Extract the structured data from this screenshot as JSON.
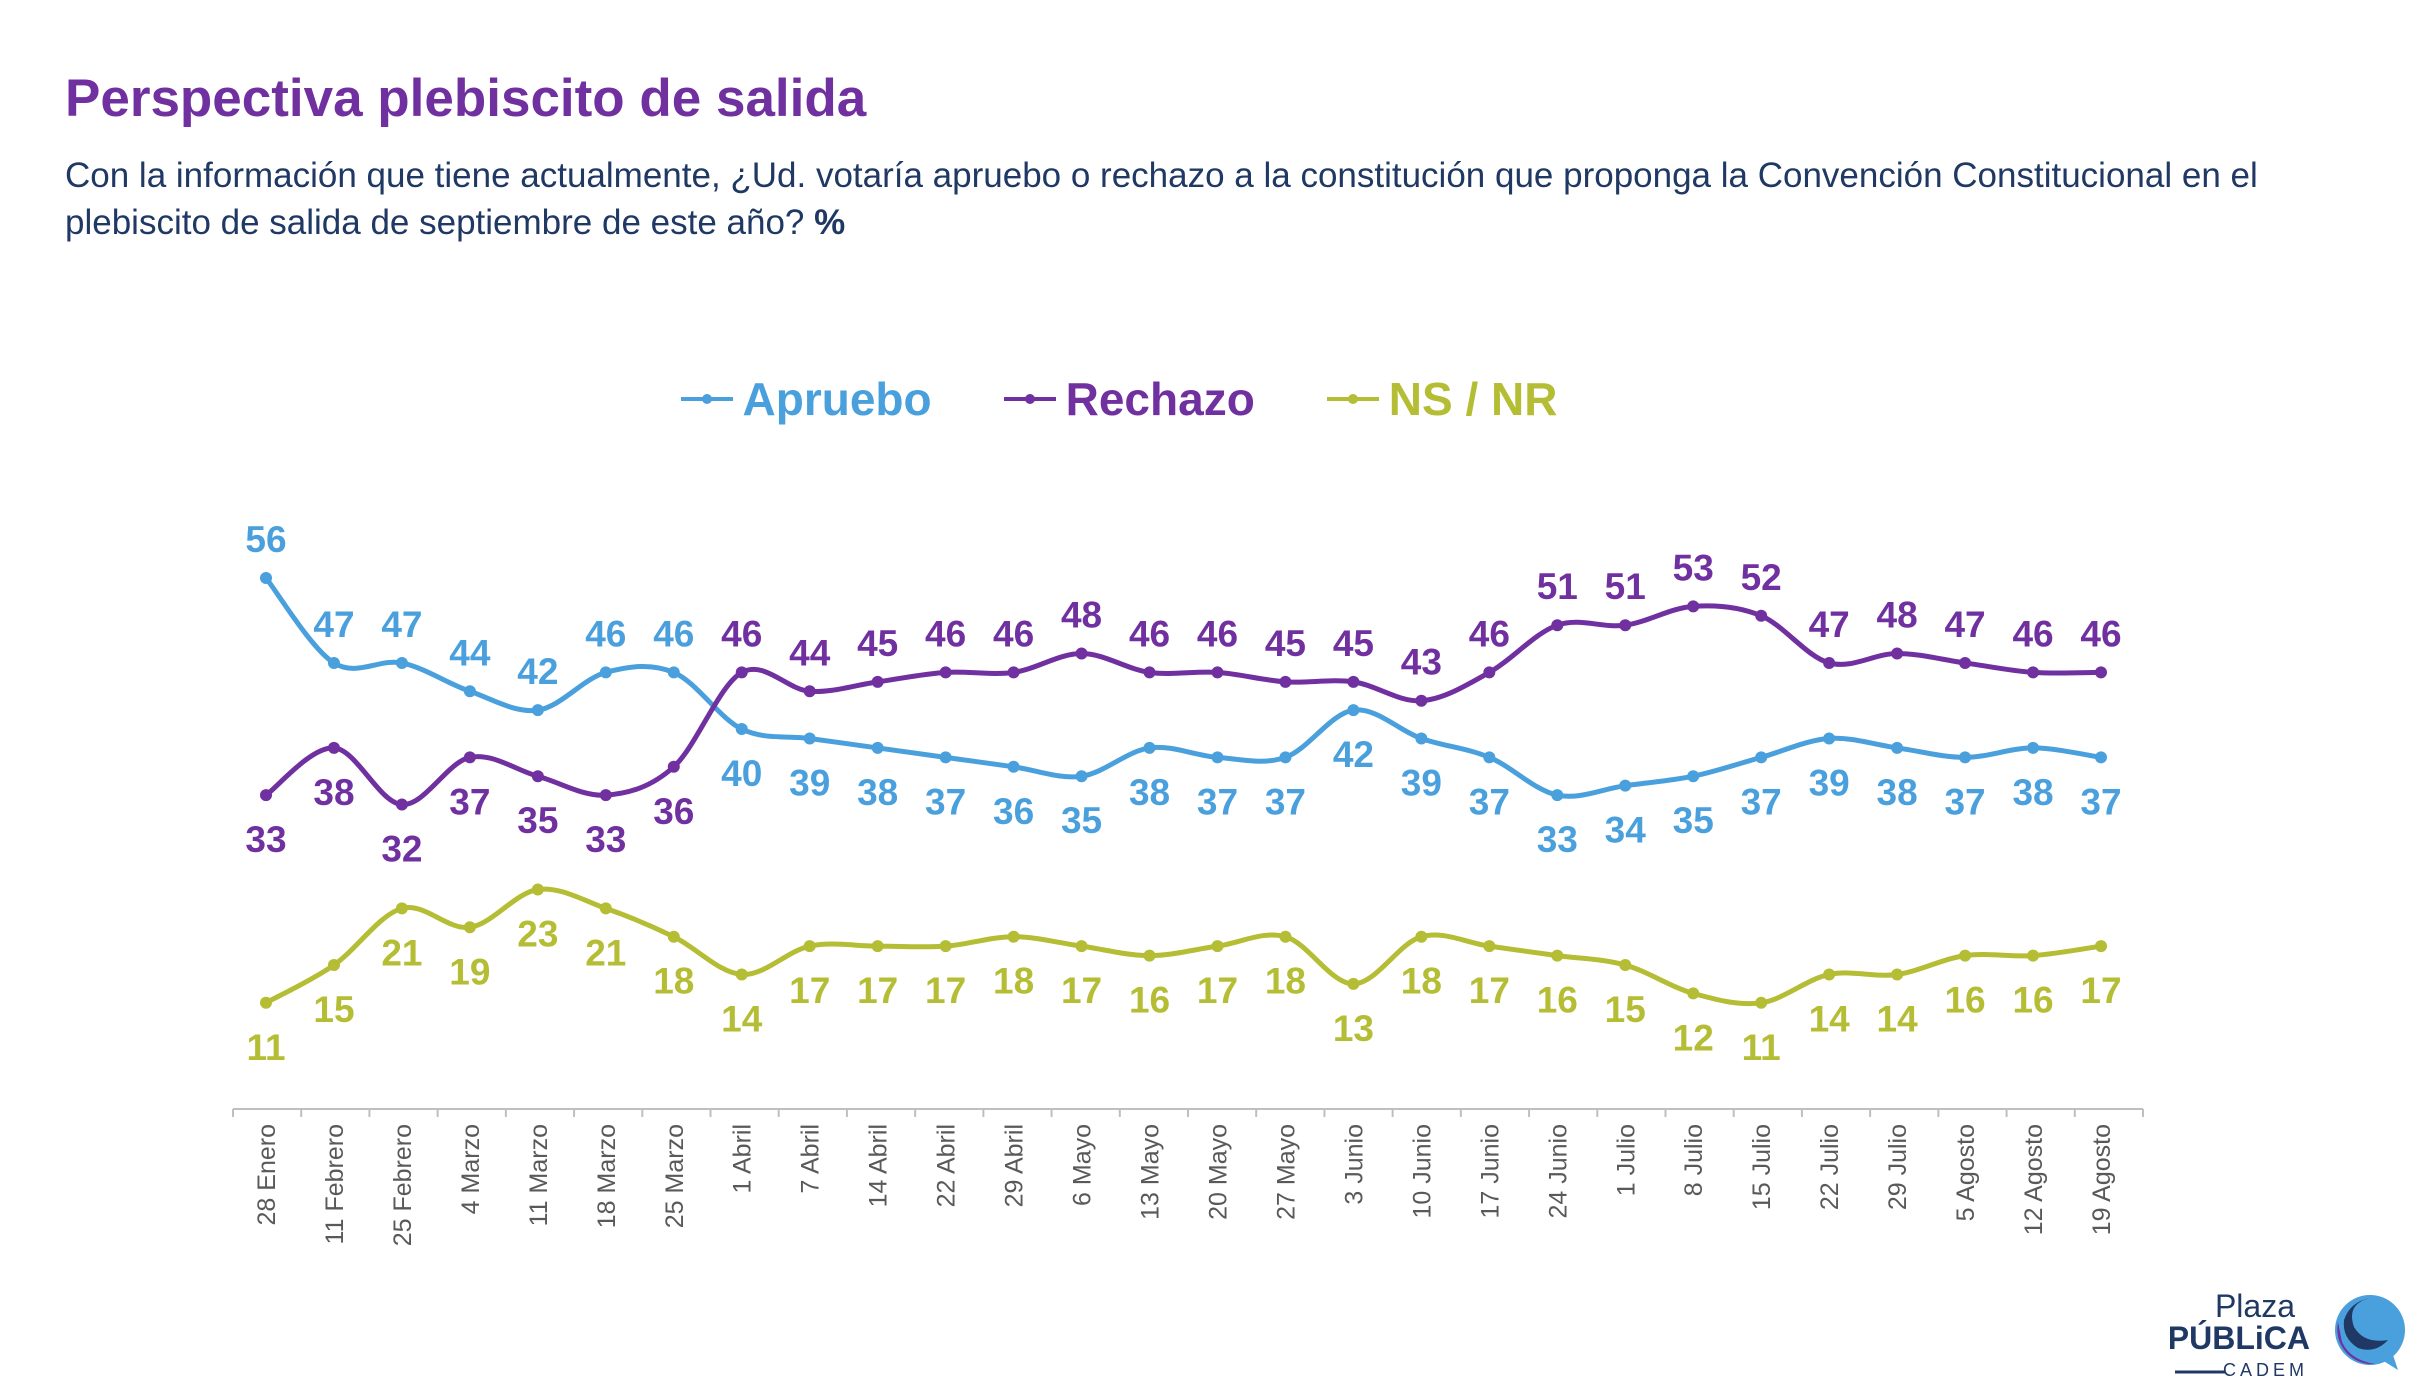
{
  "header": {
    "title": "Perspectiva plebiscito de salida",
    "subtitle": "Con la información que tiene actualmente, ¿Ud. votaría apruebo o rechazo a la constitución que proponga la Convención Constitucional en el plebiscito de salida de septiembre de este año?",
    "subtitle_unit": "%"
  },
  "chart_data": {
    "type": "line",
    "legend_placement": "top-center",
    "grid": false,
    "ylim": [
      0,
      60
    ],
    "categories": [
      "28 Enero",
      "11 Febrero",
      "25 Febrero",
      "4 Marzo",
      "11 Marzo",
      "18 Marzo",
      "25 Marzo",
      "1 Abril",
      "7 Abril",
      "14 Abril",
      "22 Abril",
      "29 Abril",
      "6 Mayo",
      "13 Mayo",
      "20 Mayo",
      "27 Mayo",
      "3 Junio",
      "10 Junio",
      "17 Junio",
      "24 Junio",
      "1 Julio",
      "8 Julio",
      "15 Julio",
      "22 Julio",
      "29 Julio",
      "5 Agosto",
      "12 Agosto",
      "19 Agosto"
    ],
    "series": [
      {
        "name": "Apruebo",
        "color": "#4aa0dc",
        "values": [
          56,
          47,
          47,
          44,
          42,
          46,
          46,
          40,
          39,
          38,
          37,
          36,
          35,
          38,
          37,
          37,
          42,
          39,
          37,
          33,
          34,
          35,
          37,
          39,
          38,
          37,
          38,
          37
        ]
      },
      {
        "name": "Rechazo",
        "color": "#7030a0",
        "values": [
          33,
          38,
          32,
          37,
          35,
          33,
          36,
          46,
          44,
          45,
          46,
          46,
          48,
          46,
          46,
          45,
          45,
          43,
          46,
          51,
          51,
          53,
          52,
          47,
          48,
          47,
          46,
          46
        ]
      },
      {
        "name": "NS / NR",
        "color": "#b5bd35",
        "values": [
          11,
          15,
          21,
          19,
          23,
          21,
          18,
          14,
          17,
          17,
          17,
          18,
          17,
          16,
          17,
          18,
          13,
          18,
          17,
          16,
          15,
          12,
          11,
          14,
          14,
          16,
          16,
          17
        ]
      }
    ]
  },
  "logo": {
    "line1": "Plaza",
    "line2": "PÚBLiCA",
    "line3": "CADEM"
  }
}
